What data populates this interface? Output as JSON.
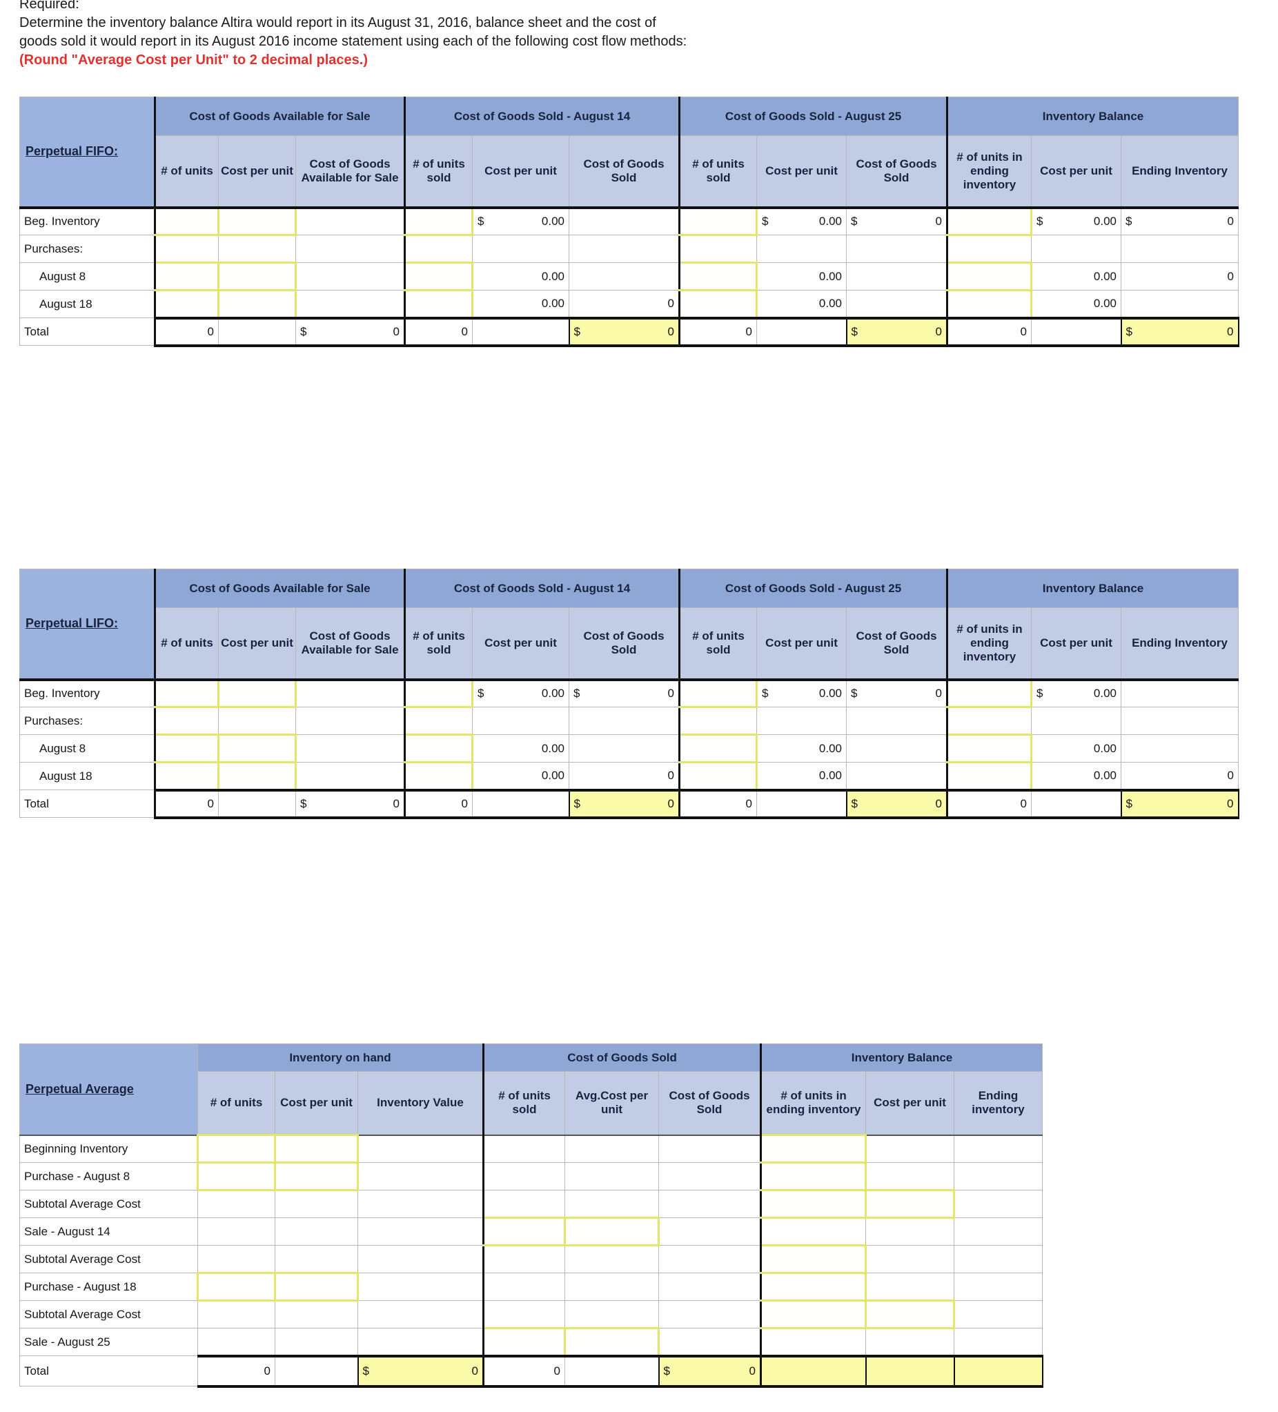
{
  "instructions": {
    "line1": "Required:",
    "line2": "Determine the inventory balance Altira would report in its August 31, 2016, balance sheet and the cost of",
    "line3": "goods sold it would report in its August 2016 income statement using each of the following cost flow methods:",
    "note": "(Round \"Average Cost per Unit\" to 2 decimal places.)"
  },
  "colors": {
    "group_header_blue": "#8fa7d5",
    "subheader_blue": "#c2cde5",
    "label_blue": "#9db3df",
    "input_cell_border": "#e4e66c",
    "highlight_yellow": "#fafaa8",
    "note_red": "#e03231"
  },
  "tables": [
    {
      "title": "Perpetual FIFO:",
      "groups": [
        {
          "label": "Cost of Goods Available for Sale",
          "cols": [
            "# of units",
            "Cost per unit",
            "Cost of Goods Available for Sale"
          ]
        },
        {
          "label": "Cost of Goods Sold - August 14",
          "cols": [
            "# of units sold",
            "Cost per unit",
            "Cost of Goods Sold"
          ]
        },
        {
          "label": "Cost of Goods Sold - August 25",
          "cols": [
            "# of units sold",
            "Cost per unit",
            "Cost of Goods Sold"
          ]
        },
        {
          "label": "Inventory Balance",
          "cols": [
            "# of units in ending inventory",
            "Cost per unit",
            "Ending Inventory"
          ]
        }
      ],
      "rows": [
        {
          "label": "Beg. Inventory",
          "cells": [
            {
              "s": "input"
            },
            {
              "s": "input"
            },
            {},
            {
              "s": "input"
            },
            {
              "d": "$",
              "v": "0.00"
            },
            {},
            {
              "s": "input"
            },
            {
              "d": "$",
              "v": "0.00"
            },
            {
              "d": "$",
              "v": "0"
            },
            {
              "s": "input"
            },
            {
              "d": "$",
              "v": "0.00"
            },
            {
              "d": "$",
              "v": "0"
            }
          ]
        },
        {
          "label": "Purchases:",
          "cells": [
            {},
            {},
            {},
            {},
            {},
            {},
            {},
            {},
            {},
            {},
            {},
            {}
          ]
        },
        {
          "label": "August 8",
          "indent": true,
          "cells": [
            {
              "s": "input"
            },
            {
              "s": "input"
            },
            {},
            {
              "s": "input"
            },
            {
              "v": "0.00"
            },
            {},
            {
              "s": "input"
            },
            {
              "v": "0.00"
            },
            {},
            {
              "s": "input"
            },
            {
              "v": "0.00"
            },
            {
              "v": "0"
            }
          ]
        },
        {
          "label": "August 18",
          "indent": true,
          "cells": [
            {
              "s": "input"
            },
            {
              "s": "input"
            },
            {},
            {
              "s": "input"
            },
            {
              "v": "0.00"
            },
            {
              "v": "0"
            },
            {
              "s": "input"
            },
            {
              "v": "0.00"
            },
            {},
            {
              "s": "input"
            },
            {
              "v": "0.00"
            },
            {}
          ]
        },
        {
          "label": "Total",
          "total": true,
          "cells": [
            {
              "v": "0"
            },
            {},
            {
              "d": "$",
              "v": "0"
            },
            {
              "v": "0"
            },
            {},
            {
              "s": "hl",
              "d": "$",
              "v": "0"
            },
            {
              "v": "0"
            },
            {},
            {
              "s": "hl",
              "d": "$",
              "v": "0"
            },
            {
              "v": "0"
            },
            {},
            {
              "s": "hl",
              "d": "$",
              "v": "0"
            }
          ]
        }
      ]
    },
    {
      "title": "Perpetual LIFO:",
      "groups": [
        {
          "label": "Cost of Goods Available for Sale",
          "cols": [
            "# of units",
            "Cost per unit",
            "Cost of Goods Available for Sale"
          ]
        },
        {
          "label": "Cost of Goods Sold - August 14",
          "cols": [
            "# of units sold",
            "Cost per unit",
            "Cost of Goods Sold"
          ]
        },
        {
          "label": "Cost of Goods Sold - August 25",
          "cols": [
            "# of units sold",
            "Cost per unit",
            "Cost of Goods Sold"
          ]
        },
        {
          "label": "Inventory Balance",
          "cols": [
            "# of units in ending inventory",
            "Cost per unit",
            "Ending Inventory"
          ]
        }
      ],
      "rows": [
        {
          "label": "Beg. Inventory",
          "cells": [
            {
              "s": "input"
            },
            {
              "s": "input"
            },
            {},
            {
              "s": "input"
            },
            {
              "d": "$",
              "v": "0.00"
            },
            {
              "d": "$",
              "v": "0"
            },
            {
              "s": "input"
            },
            {
              "d": "$",
              "v": "0.00"
            },
            {
              "d": "$",
              "v": "0"
            },
            {
              "s": "input"
            },
            {
              "d": "$",
              "v": "0.00"
            },
            {}
          ]
        },
        {
          "label": "Purchases:",
          "cells": [
            {},
            {},
            {},
            {},
            {},
            {},
            {},
            {},
            {},
            {},
            {},
            {}
          ]
        },
        {
          "label": "August 8",
          "indent": true,
          "cells": [
            {
              "s": "input"
            },
            {
              "s": "input"
            },
            {},
            {
              "s": "input"
            },
            {
              "v": "0.00"
            },
            {},
            {
              "s": "input"
            },
            {
              "v": "0.00"
            },
            {},
            {
              "s": "input"
            },
            {
              "v": "0.00"
            },
            {}
          ]
        },
        {
          "label": "August 18",
          "indent": true,
          "cells": [
            {
              "s": "input"
            },
            {
              "s": "input"
            },
            {},
            {
              "s": "input"
            },
            {
              "v": "0.00"
            },
            {
              "v": "0"
            },
            {
              "s": "input"
            },
            {
              "v": "0.00"
            },
            {},
            {
              "s": "input"
            },
            {
              "v": "0.00"
            },
            {
              "v": "0"
            }
          ]
        },
        {
          "label": "Total",
          "total": true,
          "cells": [
            {
              "v": "0"
            },
            {},
            {
              "d": "$",
              "v": "0"
            },
            {
              "v": "0"
            },
            {},
            {
              "s": "hl",
              "d": "$",
              "v": "0"
            },
            {
              "v": "0"
            },
            {},
            {
              "s": "hl",
              "d": "$",
              "v": "0"
            },
            {
              "v": "0"
            },
            {},
            {
              "s": "hl",
              "d": "$",
              "v": "0"
            }
          ]
        }
      ]
    },
    {
      "title": "Perpetual Average",
      "groups": [
        {
          "label": "Inventory on hand",
          "cols": [
            "# of units",
            "Cost per unit",
            "Inventory Value"
          ]
        },
        {
          "label": "Cost of Goods Sold",
          "cols": [
            "# of units sold",
            "Avg.Cost per unit",
            "Cost of Goods Sold"
          ]
        },
        {
          "label": "Inventory Balance",
          "cols": [
            "# of units in ending inventory",
            "Cost per unit",
            "Ending inventory"
          ]
        }
      ],
      "rows": [
        {
          "label": "Beginning Inventory",
          "cells": [
            {
              "s": "input"
            },
            {
              "s": "input"
            },
            {},
            {},
            {},
            {},
            {
              "s": "input"
            },
            {},
            {}
          ]
        },
        {
          "label": "Purchase - August 8",
          "cells": [
            {
              "s": "input"
            },
            {
              "s": "input"
            },
            {},
            {},
            {},
            {},
            {
              "s": "input"
            },
            {},
            {}
          ]
        },
        {
          "label": "Subtotal Average Cost",
          "cells": [
            {},
            {},
            {},
            {},
            {},
            {},
            {
              "s": "input"
            },
            {
              "s": "input"
            },
            {}
          ]
        },
        {
          "label": "Sale - August 14",
          "cells": [
            {},
            {},
            {},
            {
              "s": "input"
            },
            {
              "s": "input"
            },
            {},
            {},
            {},
            {}
          ]
        },
        {
          "label": "Subtotal Average Cost",
          "cells": [
            {},
            {},
            {},
            {},
            {},
            {},
            {
              "s": "input"
            },
            {},
            {}
          ]
        },
        {
          "label": "Purchase - August 18",
          "cells": [
            {
              "s": "input"
            },
            {
              "s": "input"
            },
            {},
            {},
            {},
            {},
            {
              "s": "input"
            },
            {},
            {}
          ]
        },
        {
          "label": "Subtotal Average Cost",
          "cells": [
            {},
            {},
            {},
            {},
            {},
            {},
            {
              "s": "input"
            },
            {
              "s": "input"
            },
            {}
          ]
        },
        {
          "label": "Sale - August 25",
          "cells": [
            {},
            {},
            {},
            {
              "s": "input"
            },
            {
              "s": "input"
            },
            {},
            {},
            {},
            {}
          ]
        },
        {
          "label": "Total",
          "total": true,
          "cells": [
            {
              "v": "0"
            },
            {},
            {
              "s": "hl",
              "d": "$",
              "v": "0"
            },
            {
              "v": "0"
            },
            {},
            {
              "s": "hl",
              "d": "$",
              "v": "0"
            },
            {
              "s": "hl"
            },
            {
              "s": "hl"
            },
            {
              "s": "hl"
            }
          ]
        }
      ]
    }
  ]
}
